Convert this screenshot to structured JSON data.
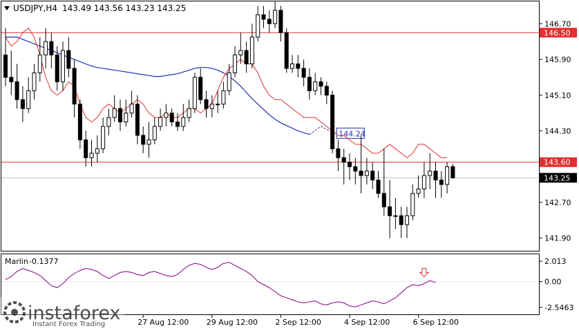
{
  "header": {
    "symbol": "USDJPY,H4",
    "ohlc": "143.49 143.56 143.23 143.25"
  },
  "indicator": {
    "name": "Marlin",
    "value": "-0.1377",
    "ticks": [
      "2.013",
      "0.00",
      "-2.5463"
    ],
    "tick_values": [
      2.013,
      0.0,
      -2.5463
    ],
    "ylim": [
      -3.3,
      2.7
    ],
    "color": "#800080",
    "arrow_color": "#e03030"
  },
  "watermark": {
    "brand": "instaforex",
    "tagline": "Instant Forex Trading"
  },
  "colors": {
    "level_line": "#e03030",
    "ma_slow": "#1f2fb3",
    "ma_fast": "#e03030",
    "candle_up": "#ffffff",
    "candle_down": "#000000",
    "grid": "#c8c8c8"
  },
  "chart_data": {
    "type": "candlestick",
    "ylim": [
      141.6,
      147.2
    ],
    "y_ticks": [
      146.7,
      145.9,
      145.1,
      144.3,
      142.7,
      141.9
    ],
    "y_tick_labels": [
      "146.70",
      "145.90",
      "145.10",
      "144.30",
      "142.70",
      "141.90"
    ],
    "x_tick_labels": [
      "27 Aug 12:00",
      "29 Aug 12:00",
      "2 Sep 12:00",
      "4 Sep 12:00",
      "6 Sep 12:00"
    ],
    "x_tick_index": [
      24,
      36,
      48,
      60,
      72
    ],
    "horizontal_levels": [
      {
        "label": "146.50",
        "value": 146.5
      },
      {
        "label": "143.60",
        "value": 143.6
      }
    ],
    "current_price_label": "143.25",
    "current_price": 143.25,
    "ma_projection_label": "144.24",
    "ma_projection_value": 144.24,
    "candles": [
      [
        146.0,
        145.5,
        146.6,
        145.3
      ],
      [
        145.5,
        145.4,
        146.1,
        145.1
      ],
      [
        145.4,
        145.0,
        145.8,
        144.8
      ],
      [
        145.0,
        144.8,
        145.3,
        144.5
      ],
      [
        144.8,
        145.2,
        145.5,
        144.7
      ],
      [
        145.2,
        145.6,
        145.8,
        145.0
      ],
      [
        145.6,
        146.0,
        146.4,
        145.4
      ],
      [
        146.0,
        146.3,
        146.6,
        145.7
      ],
      [
        146.3,
        146.0,
        146.5,
        145.7
      ],
      [
        146.0,
        145.4,
        146.2,
        145.2
      ],
      [
        145.4,
        146.1,
        146.3,
        145.2
      ],
      [
        146.1,
        145.7,
        146.4,
        145.5
      ],
      [
        145.7,
        144.9,
        145.9,
        144.6
      ],
      [
        144.9,
        144.1,
        145.0,
        143.9
      ],
      [
        144.1,
        143.7,
        144.3,
        143.5
      ],
      [
        143.7,
        143.8,
        144.1,
        143.5
      ],
      [
        143.8,
        143.9,
        144.2,
        143.6
      ],
      [
        143.9,
        144.4,
        144.6,
        143.8
      ],
      [
        144.4,
        144.6,
        144.8,
        144.2
      ],
      [
        144.6,
        144.8,
        145.1,
        144.5
      ],
      [
        144.8,
        144.5,
        145.0,
        144.3
      ],
      [
        144.5,
        144.7,
        145.0,
        144.4
      ],
      [
        144.7,
        144.9,
        145.2,
        144.6
      ],
      [
        144.9,
        144.2,
        145.1,
        144.0
      ],
      [
        144.2,
        144.0,
        144.4,
        143.8
      ],
      [
        144.0,
        144.1,
        144.5,
        143.7
      ],
      [
        144.1,
        144.4,
        144.6,
        144.0
      ],
      [
        144.4,
        144.6,
        144.8,
        144.3
      ],
      [
        144.6,
        144.7,
        144.9,
        144.4
      ],
      [
        144.7,
        144.5,
        144.8,
        144.4
      ],
      [
        144.5,
        144.4,
        144.7,
        144.3
      ],
      [
        144.4,
        144.6,
        144.9,
        144.3
      ],
      [
        144.6,
        144.8,
        145.0,
        144.5
      ],
      [
        144.8,
        145.5,
        145.6,
        144.7
      ],
      [
        145.5,
        145.0,
        145.7,
        144.9
      ],
      [
        145.0,
        144.8,
        145.2,
        144.6
      ],
      [
        144.8,
        144.9,
        145.1,
        144.6
      ],
      [
        144.9,
        144.9,
        145.2,
        144.7
      ],
      [
        144.9,
        145.2,
        145.4,
        144.8
      ],
      [
        145.2,
        145.6,
        145.8,
        145.1
      ],
      [
        145.6,
        146.0,
        146.2,
        145.5
      ],
      [
        146.0,
        146.1,
        146.5,
        145.8
      ],
      [
        146.1,
        145.8,
        146.3,
        145.6
      ],
      [
        145.8,
        146.4,
        146.7,
        145.7
      ],
      [
        146.4,
        146.9,
        147.1,
        146.3
      ],
      [
        146.9,
        146.8,
        147.1,
        146.6
      ],
      [
        146.8,
        146.7,
        147.0,
        146.5
      ],
      [
        146.7,
        147.0,
        147.2,
        146.6
      ],
      [
        147.0,
        146.5,
        147.1,
        146.3
      ],
      [
        146.5,
        145.7,
        146.6,
        145.6
      ],
      [
        145.7,
        145.8,
        146.0,
        145.6
      ],
      [
        145.8,
        145.7,
        146.0,
        145.5
      ],
      [
        145.7,
        145.5,
        145.9,
        145.3
      ],
      [
        145.5,
        145.2,
        145.7,
        145.0
      ],
      [
        145.2,
        145.4,
        145.6,
        145.1
      ],
      [
        145.4,
        145.3,
        145.5,
        145.1
      ],
      [
        145.3,
        145.1,
        145.4,
        144.9
      ],
      [
        145.1,
        143.9,
        145.2,
        143.8
      ],
      [
        143.9,
        143.7,
        144.1,
        143.4
      ],
      [
        143.7,
        143.6,
        143.9,
        143.1
      ],
      [
        143.6,
        143.5,
        143.8,
        143.2
      ],
      [
        143.5,
        143.4,
        143.7,
        143.1
      ],
      [
        143.4,
        143.3,
        144.2,
        142.9
      ],
      [
        143.3,
        143.4,
        143.7,
        143.1
      ],
      [
        143.4,
        143.2,
        143.6,
        143.0
      ],
      [
        143.2,
        142.9,
        143.4,
        142.8
      ],
      [
        142.9,
        142.6,
        143.9,
        142.4
      ],
      [
        142.6,
        142.4,
        143.2,
        141.9
      ],
      [
        142.4,
        142.4,
        142.8,
        142.1
      ],
      [
        142.4,
        142.2,
        142.6,
        141.9
      ],
      [
        142.2,
        142.4,
        142.6,
        141.9
      ],
      [
        142.4,
        142.9,
        143.1,
        142.3
      ],
      [
        142.9,
        143.0,
        143.3,
        142.8
      ],
      [
        143.0,
        143.3,
        143.6,
        142.8
      ],
      [
        143.3,
        143.4,
        143.8,
        143.0
      ],
      [
        143.4,
        143.2,
        143.6,
        142.8
      ],
      [
        143.2,
        143.1,
        143.4,
        142.8
      ],
      [
        143.1,
        143.5,
        143.6,
        142.9
      ],
      [
        143.5,
        143.25,
        143.56,
        143.23
      ]
    ],
    "ma_fast": [
      146.4,
      146.2,
      146.3,
      146.5,
      146.6,
      146.4,
      146.0,
      145.5,
      145.2,
      145.1,
      145.2,
      145.4,
      145.3,
      144.9,
      144.6,
      144.5,
      144.6,
      144.8,
      144.9,
      144.8,
      144.7,
      144.8,
      144.9,
      145.0,
      144.9,
      144.7,
      144.6,
      144.6,
      144.7,
      144.6,
      144.6,
      144.7,
      144.8,
      144.8,
      144.7,
      144.8,
      144.9,
      145.2,
      145.5,
      145.7,
      145.8,
      145.9,
      145.8,
      145.8,
      145.6,
      145.3,
      145.1,
      145.0,
      145.0,
      144.9,
      144.8,
      144.7,
      144.6,
      144.6,
      144.6,
      144.5,
      144.4,
      144.3,
      144.2,
      144.2,
      144.1,
      144.0,
      144.0,
      143.9,
      143.8,
      143.8,
      143.9,
      144.0,
      143.9,
      143.8,
      143.7,
      143.8,
      144.0,
      144.0,
      143.9,
      143.8,
      143.7,
      143.7
    ],
    "ma_slow": [
      146.4,
      146.4,
      146.4,
      146.35,
      146.3,
      146.25,
      146.2,
      146.15,
      146.1,
      146.05,
      146.0,
      145.95,
      145.9,
      145.85,
      145.8,
      145.75,
      145.72,
      145.7,
      145.68,
      145.66,
      145.64,
      145.62,
      145.6,
      145.58,
      145.56,
      145.54,
      145.52,
      145.52,
      145.54,
      145.56,
      145.58,
      145.62,
      145.66,
      145.7,
      145.72,
      145.72,
      145.7,
      145.66,
      145.6,
      145.52,
      145.42,
      145.3,
      145.16,
      145.02,
      144.9,
      144.78,
      144.66,
      144.56,
      144.48,
      144.42,
      144.36,
      144.3,
      144.26,
      144.22
    ],
    "ma_slow_projection": [
      144.4,
      144.24
    ],
    "marlin": [
      0.2,
      0.5,
      1.0,
      1.3,
      1.1,
      0.9,
      0.6,
      0.1,
      -0.4,
      -0.6,
      -0.2,
      0.4,
      0.8,
      1.1,
      1.3,
      1.2,
      1.0,
      0.6,
      0.3,
      0.6,
      0.9,
      1.0,
      0.9,
      0.7,
      0.6,
      0.9,
      1.0,
      0.8,
      0.6,
      0.5,
      0.7,
      1.2,
      1.6,
      1.8,
      1.7,
      1.4,
      1.2,
      1.4,
      1.8,
      1.9,
      1.6,
      1.3,
      1.0,
      0.6,
      0.0,
      -0.3,
      -0.6,
      -1.0,
      -1.4,
      -1.6,
      -1.8,
      -2.0,
      -2.1,
      -2.0,
      -1.9,
      -2.2,
      -2.3,
      -2.1,
      -2.0,
      -2.1,
      -2.4,
      -2.5,
      -2.3,
      -2.1,
      -1.9,
      -2.0,
      -2.2,
      -1.9,
      -1.6,
      -1.1,
      -0.6,
      -0.3,
      -0.4,
      -0.2,
      0.1,
      -0.1
    ]
  }
}
